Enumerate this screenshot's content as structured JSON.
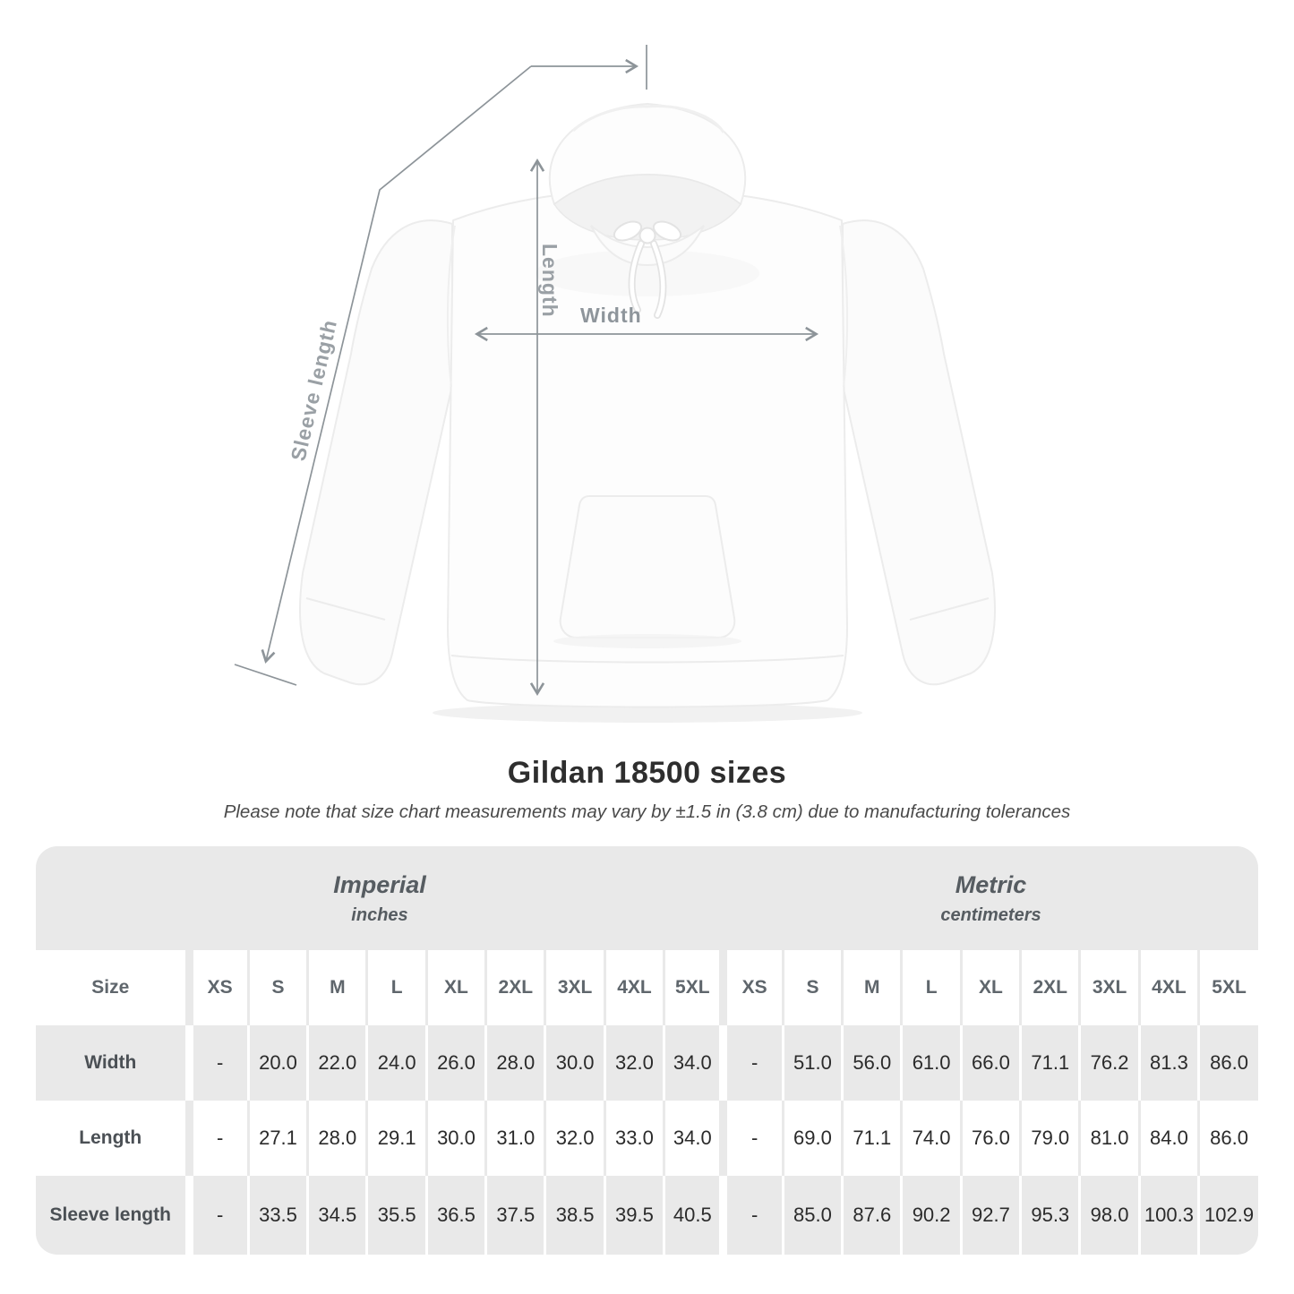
{
  "figure": {
    "length_label": "Length",
    "width_label": "Width",
    "sleeve_label": "Sleeve length"
  },
  "title": "Gildan 18500 sizes",
  "subtitle": "Please note that size chart measurements may vary by ±1.5 in (3.8 cm) due to manufacturing tolerances",
  "table": {
    "size_label": "Size",
    "unit_groups": [
      {
        "name": "Imperial",
        "unit": "inches"
      },
      {
        "name": "Metric",
        "unit": "centimeters"
      }
    ],
    "sizes": [
      "XS",
      "S",
      "M",
      "L",
      "XL",
      "2XL",
      "3XL",
      "4XL",
      "5XL"
    ],
    "rows": [
      {
        "label": "Width",
        "imperial": [
          "-",
          "20.0",
          "22.0",
          "24.0",
          "26.0",
          "28.0",
          "30.0",
          "32.0",
          "34.0"
        ],
        "metric": [
          "-",
          "51.0",
          "56.0",
          "61.0",
          "66.0",
          "71.1",
          "76.2",
          "81.3",
          "86.0"
        ]
      },
      {
        "label": "Length",
        "imperial": [
          "-",
          "27.1",
          "28.0",
          "29.1",
          "30.0",
          "31.0",
          "32.0",
          "33.0",
          "34.0"
        ],
        "metric": [
          "-",
          "69.0",
          "71.1",
          "74.0",
          "76.0",
          "79.0",
          "81.0",
          "84.0",
          "86.0"
        ]
      },
      {
        "label": "Sleeve length",
        "imperial": [
          "-",
          "33.5",
          "34.5",
          "35.5",
          "36.5",
          "37.5",
          "38.5",
          "39.5",
          "40.5"
        ],
        "metric": [
          "-",
          "85.0",
          "87.6",
          "90.2",
          "92.7",
          "95.3",
          "98.0",
          "100.3",
          "102.9"
        ]
      }
    ]
  },
  "colors": {
    "measure_line": "#8d9499",
    "measure_label": "#9aa0a5",
    "table_band": "#e9e9e9"
  }
}
